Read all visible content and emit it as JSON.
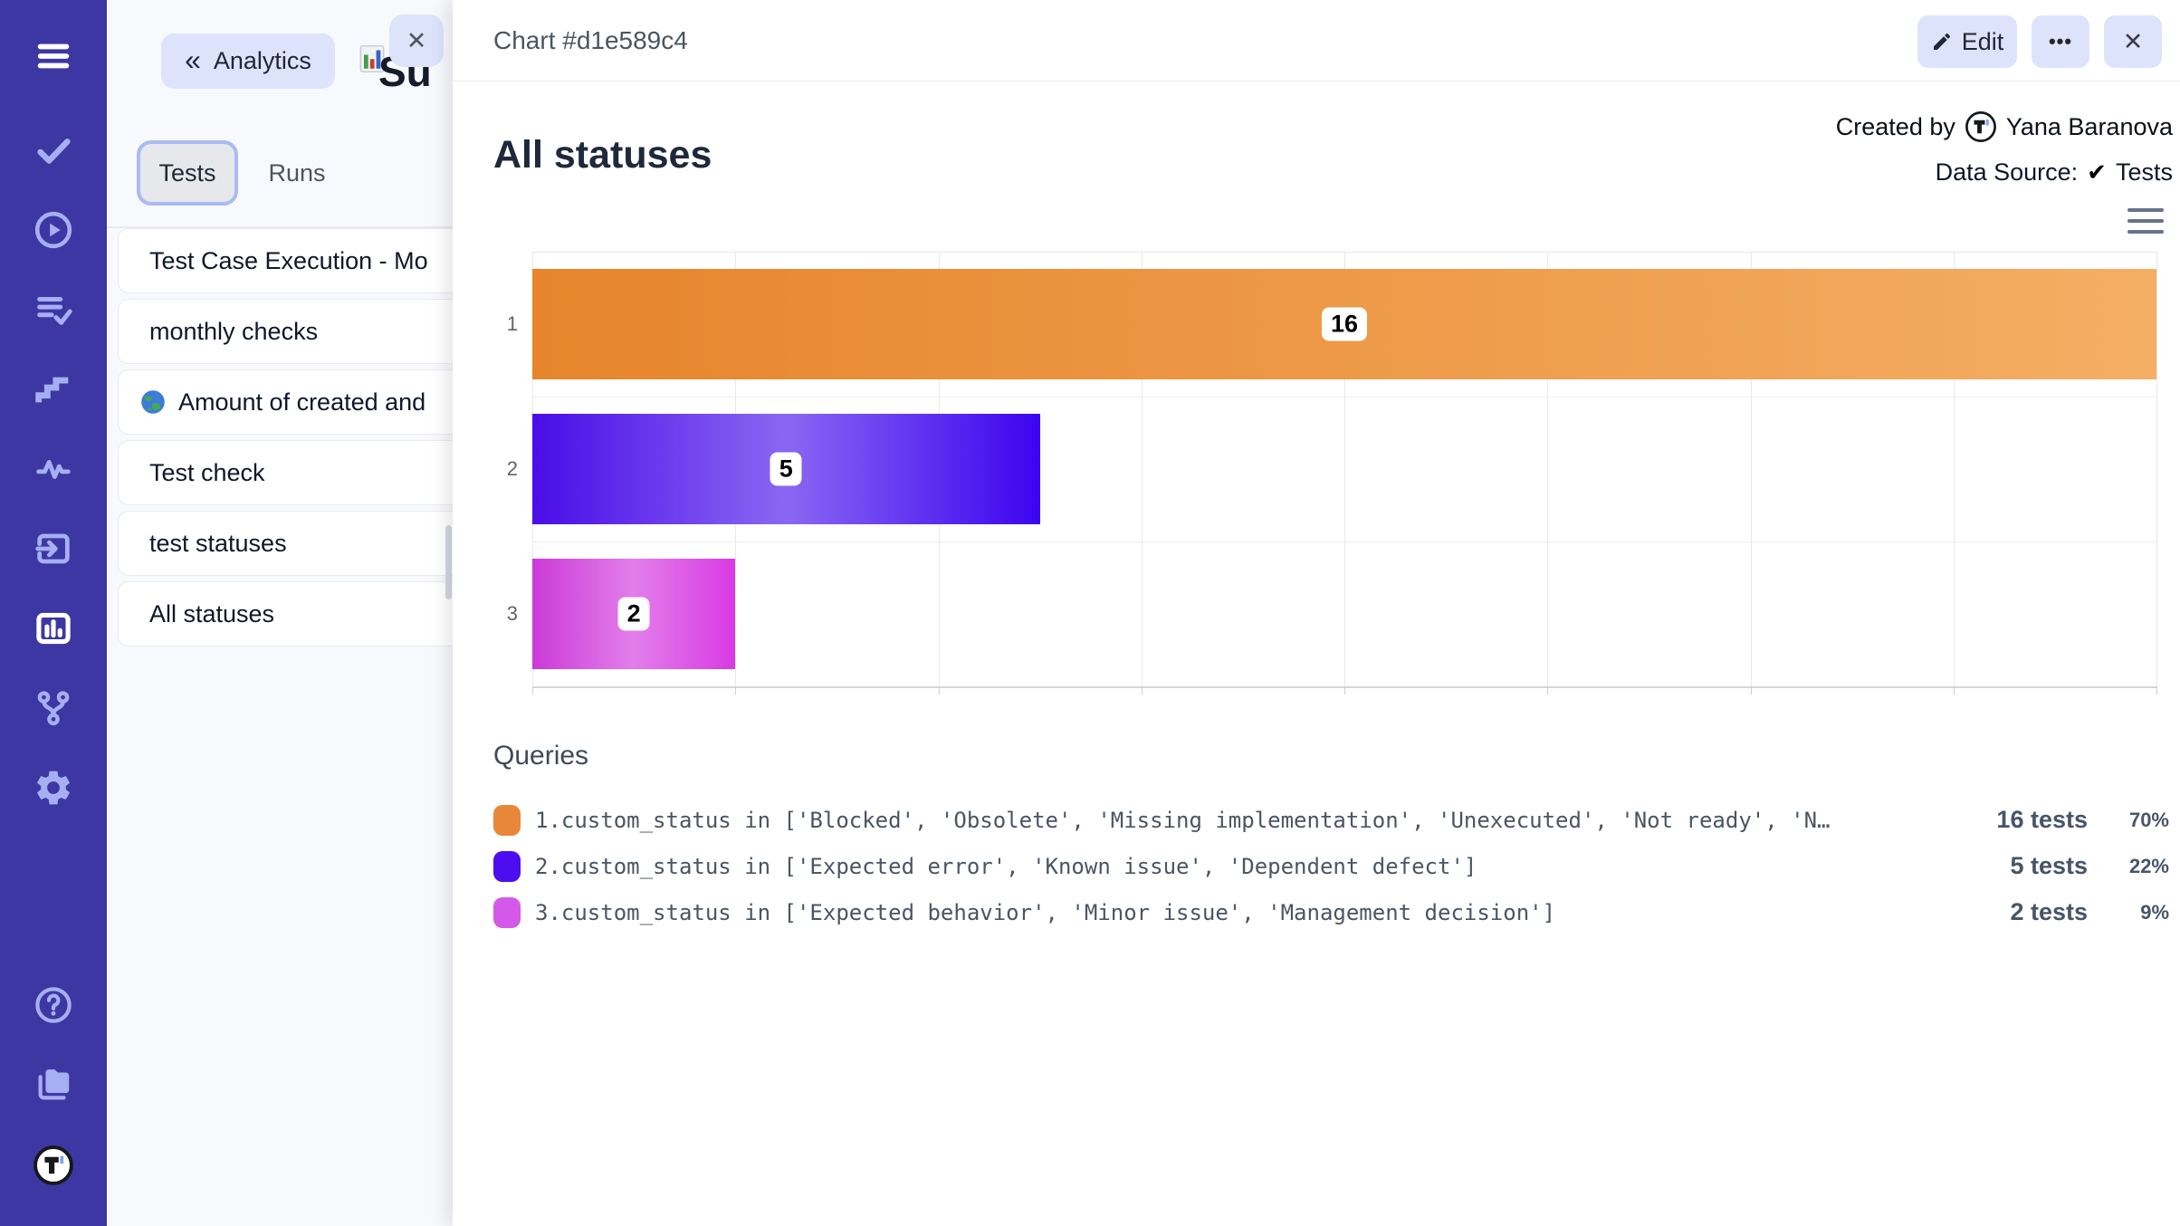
{
  "sidebar": {
    "bg_color": "#3d37a3",
    "icon_color": "#a6aff1",
    "active_item": "bar-chart-icon",
    "icons": [
      "menu-icon",
      "check-icon",
      "play-circle-icon",
      "list-check-icon",
      "stairs-icon",
      "activity-icon",
      "import-icon",
      "bar-chart-icon",
      "branch-icon",
      "gear-icon",
      "help-icon",
      "folders-icon",
      "testomat-logo"
    ]
  },
  "panel": {
    "back_icon": "«",
    "back_label": "Analytics",
    "occluded_tab_icon": "chart-emoji",
    "occluded_title_fragment": "Su",
    "close_label": "✕",
    "tabs": {
      "active": "Tests",
      "inactive": "Runs"
    },
    "items": [
      {
        "icon": "",
        "label": "Test Case Execution - Mo"
      },
      {
        "icon": "",
        "label": "monthly checks"
      },
      {
        "icon": "globe-icon",
        "label": "Amount of created and"
      },
      {
        "icon": "",
        "label": "Test check"
      },
      {
        "icon": "",
        "label": "test statuses"
      },
      {
        "icon": "",
        "label": "All statuses"
      }
    ]
  },
  "main": {
    "window_title": "Chart #d1e589c4",
    "actions": {
      "edit_label": "Edit",
      "more_label": "•••",
      "close_label": "✕"
    },
    "meta": {
      "created_by_label": "Created by",
      "author": "Yana Baranova",
      "data_source_label": "Data Source:",
      "data_source_check": "✔",
      "data_source_value": "Tests"
    },
    "queries_heading": "Queries",
    "queries": [
      {
        "color": "#e8873a",
        "text": "1.custom_status in ['Blocked', 'Obsolete', 'Missing implementation', 'Unexecuted', 'Not ready', 'N…",
        "tests": "16 tests",
        "percent": "70%"
      },
      {
        "color": "#4c0df0",
        "text": "2.custom_status in ['Expected error', 'Known issue', 'Dependent defect']",
        "tests": "5 tests",
        "percent": "22%"
      },
      {
        "color": "#d559e8",
        "text": "3.custom_status in ['Expected behavior', 'Minor issue', 'Management decision']",
        "tests": "2 tests",
        "percent": "9%"
      }
    ]
  },
  "chart_data": {
    "type": "bar",
    "orientation": "horizontal",
    "title": "All statuses",
    "categories": [
      "1",
      "2",
      "3"
    ],
    "values": [
      16,
      5,
      2
    ],
    "bar_labels": [
      "16",
      "5",
      "2"
    ],
    "xlim": [
      0,
      16
    ],
    "grid_step": 2,
    "grid": true,
    "legend_position": "bottom-queries-list",
    "bar_gradients": [
      [
        "#e6852c",
        "#f4ae64"
      ],
      [
        "#4a0de8",
        "#8a67f2",
        "#3c04f0"
      ],
      [
        "#cb3ad7",
        "#e27eea",
        "#d83ae4"
      ]
    ]
  }
}
